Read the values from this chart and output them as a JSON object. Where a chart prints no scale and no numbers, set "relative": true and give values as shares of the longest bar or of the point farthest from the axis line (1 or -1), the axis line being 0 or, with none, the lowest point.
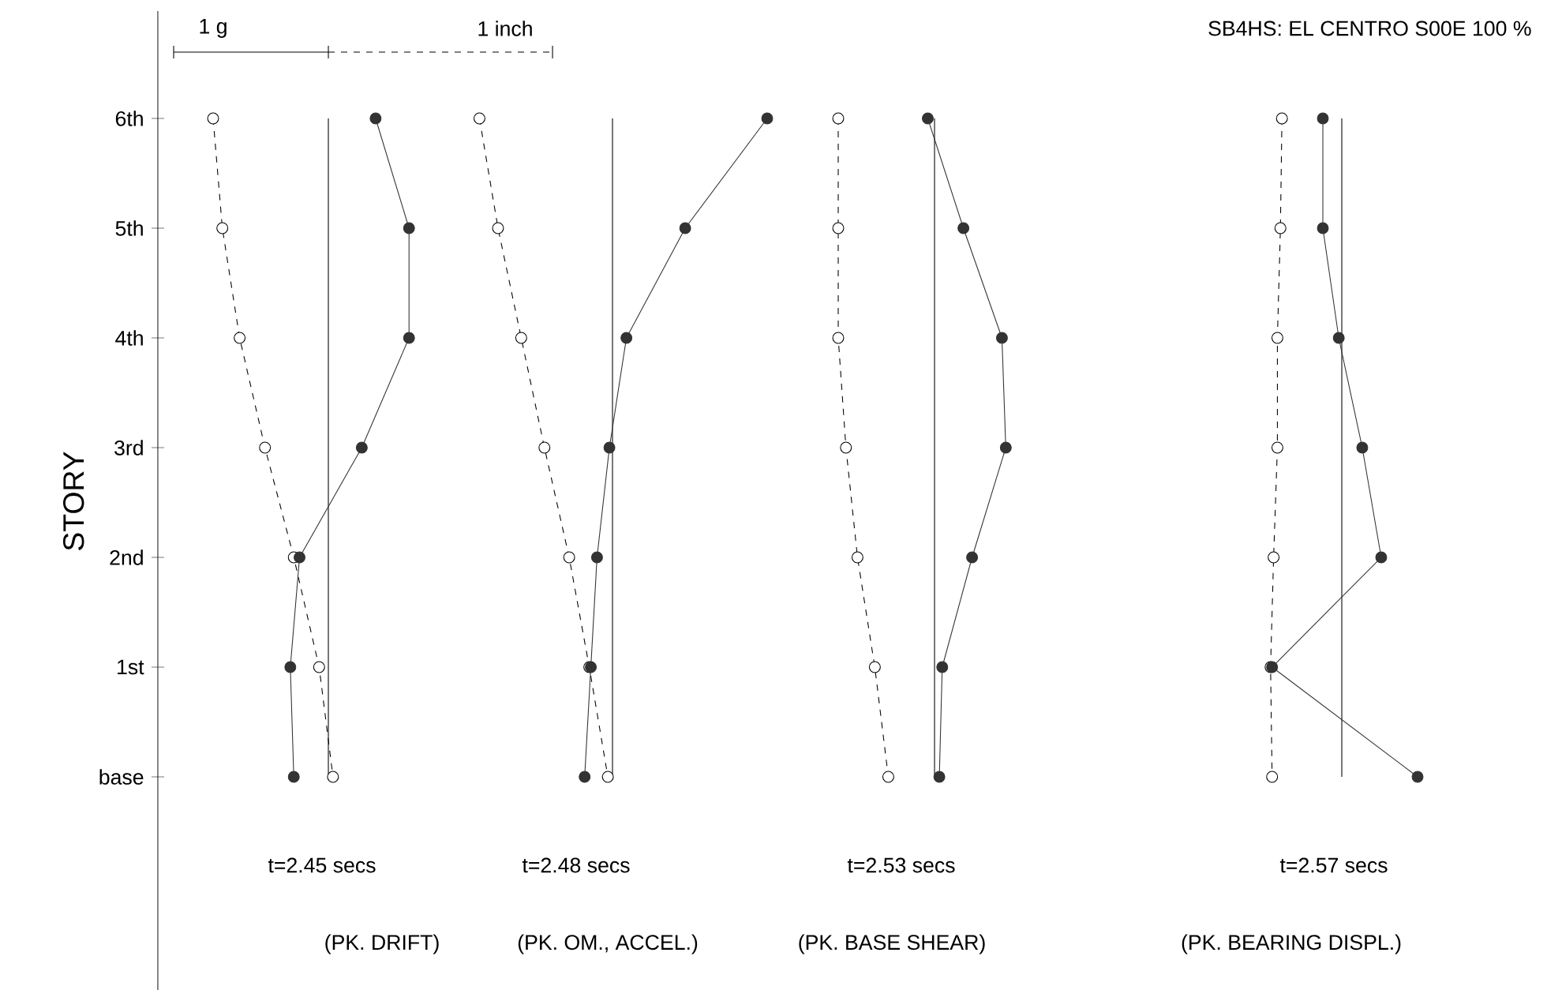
{
  "chart_data": [
    {
      "type": "line",
      "orientation": "horizontal",
      "relative": true,
      "ylabel": "STORY",
      "tick_labels": "y",
      "marker": "circle",
      "categories": [
        "6th",
        "5th",
        "4th",
        "3rd",
        "2nd",
        "1st",
        "base"
      ],
      "annotations": [
        "t=2.45 secs",
        "(PK. DRIFT)",
        "1 g",
        "1 inch"
      ],
      "series": [
        {
          "color": "#000000",
          "line_style": "dashed",
          "values": [
            -1,
            -0.92,
            -0.77,
            -0.55,
            -0.3,
            -0.08,
            0.04
          ]
        },
        {
          "color": "#333333",
          "line_style": "solid",
          "values": [
            0.41,
            0.7,
            0.7,
            0.29,
            -0.25,
            -0.33,
            -0.3
          ]
        }
      ]
    },
    {
      "type": "line",
      "orientation": "horizontal",
      "relative": true,
      "tick_labels": false,
      "marker": "circle",
      "categories": [
        null,
        null,
        null,
        null,
        null,
        null,
        null
      ],
      "annotations": [
        "t=2.48 secs",
        "(PK. OM., ACCEL.)"
      ],
      "series": [
        {
          "color": "#000000",
          "line_style": "dashed",
          "values": [
            -0.86,
            -0.74,
            -0.59,
            -0.44,
            -0.28,
            -0.15,
            -0.03
          ]
        },
        {
          "color": "#333333",
          "line_style": "solid",
          "values": [
            1,
            0.47,
            0.09,
            -0.02,
            -0.1,
            -0.14,
            -0.18
          ]
        }
      ]
    },
    {
      "type": "line",
      "orientation": "horizontal",
      "relative": true,
      "tick_labels": false,
      "marker": "circle",
      "categories": [
        null,
        null,
        null,
        null,
        null,
        null,
        null
      ],
      "annotations": [
        "t=2.53 secs",
        "(PK. BASE SHEAR)"
      ],
      "series": [
        {
          "color": "#000000",
          "line_style": "dashed",
          "values": [
            -1,
            -1,
            -1,
            -0.92,
            -0.8,
            -0.62,
            -0.48
          ]
        },
        {
          "color": "#333333",
          "line_style": "solid",
          "values": [
            -0.07,
            0.3,
            0.7,
            0.74,
            0.39,
            0.08,
            0.05
          ]
        }
      ]
    },
    {
      "type": "line",
      "orientation": "horizontal",
      "relative": true,
      "tick_labels": false,
      "marker": "circle",
      "title": "SB4HS: EL CENTRO S00E 100 %",
      "categories": [
        null,
        null,
        null,
        null,
        null,
        null,
        null
      ],
      "annotations": [
        "t=2.57 secs",
        "(PK. BEARING DISPL.)"
      ],
      "series": [
        {
          "color": "#000000",
          "line_style": "dashed",
          "values": [
            -0.79,
            -0.81,
            -0.85,
            -0.85,
            -0.9,
            -0.94,
            -0.92
          ]
        },
        {
          "color": "#333333",
          "line_style": "solid",
          "values": [
            -0.25,
            -0.25,
            -0.04,
            0.27,
            0.52,
            -0.92,
            1
          ]
        }
      ]
    }
  ]
}
